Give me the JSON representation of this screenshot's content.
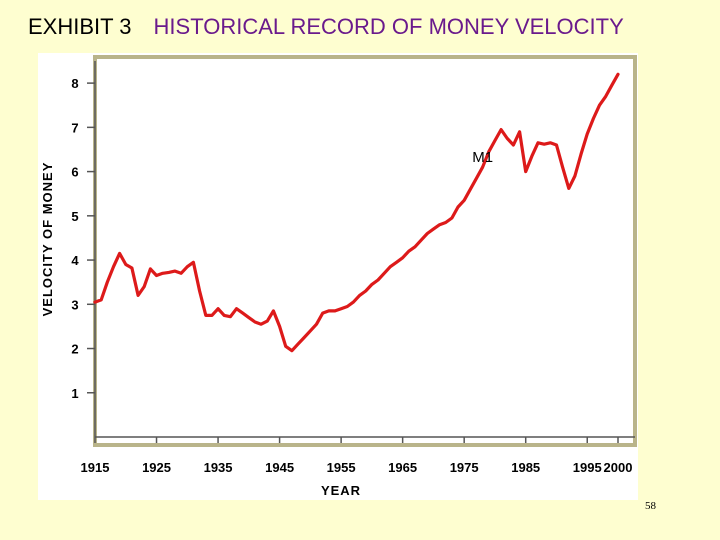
{
  "slide": {
    "exhibit_label": "EXHIBIT 3",
    "title": "HISTORICAL RECORD OF MONEY VELOCITY",
    "page_number": "58"
  },
  "colors": {
    "background": "#fefed0",
    "title": "#6a1a8c",
    "line": "#dd1a1a",
    "axis": "#555555",
    "frame": "#b9b48a"
  },
  "chart_data": {
    "type": "line",
    "title": "",
    "xlabel": "YEAR",
    "ylabel": "VELOCITY OF MONEY",
    "xlim": [
      1915,
      2000
    ],
    "ylim": [
      0,
      8.5
    ],
    "x_ticks": [
      "1915",
      "1925",
      "1935",
      "1945",
      "1955",
      "1965",
      "1975",
      "1985",
      "1995",
      "2000"
    ],
    "y_ticks": [
      "1",
      "2",
      "3",
      "4",
      "5",
      "6",
      "7",
      "8"
    ],
    "grid": false,
    "series": [
      {
        "name": "M1",
        "points": [
          [
            1915,
            3.05
          ],
          [
            1916,
            3.1
          ],
          [
            1917,
            3.5
          ],
          [
            1918,
            3.85
          ],
          [
            1919,
            4.15
          ],
          [
            1920,
            3.9
          ],
          [
            1921,
            3.82
          ],
          [
            1922,
            3.2
          ],
          [
            1923,
            3.4
          ],
          [
            1924,
            3.8
          ],
          [
            1925,
            3.65
          ],
          [
            1926,
            3.7
          ],
          [
            1927,
            3.72
          ],
          [
            1928,
            3.75
          ],
          [
            1929,
            3.7
          ],
          [
            1930,
            3.85
          ],
          [
            1931,
            3.95
          ],
          [
            1932,
            3.3
          ],
          [
            1933,
            2.75
          ],
          [
            1934,
            2.75
          ],
          [
            1935,
            2.9
          ],
          [
            1936,
            2.75
          ],
          [
            1937,
            2.72
          ],
          [
            1938,
            2.9
          ],
          [
            1939,
            2.8
          ],
          [
            1940,
            2.7
          ],
          [
            1941,
            2.6
          ],
          [
            1942,
            2.55
          ],
          [
            1943,
            2.62
          ],
          [
            1944,
            2.85
          ],
          [
            1945,
            2.5
          ],
          [
            1946,
            2.05
          ],
          [
            1947,
            1.95
          ],
          [
            1948,
            2.1
          ],
          [
            1949,
            2.25
          ],
          [
            1950,
            2.4
          ],
          [
            1951,
            2.55
          ],
          [
            1952,
            2.8
          ],
          [
            1953,
            2.85
          ],
          [
            1954,
            2.85
          ],
          [
            1955,
            2.9
          ],
          [
            1956,
            2.95
          ],
          [
            1957,
            3.05
          ],
          [
            1958,
            3.2
          ],
          [
            1959,
            3.3
          ],
          [
            1960,
            3.45
          ],
          [
            1961,
            3.55
          ],
          [
            1962,
            3.7
          ],
          [
            1963,
            3.85
          ],
          [
            1964,
            3.95
          ],
          [
            1965,
            4.05
          ],
          [
            1966,
            4.2
          ],
          [
            1967,
            4.3
          ],
          [
            1968,
            4.45
          ],
          [
            1969,
            4.6
          ],
          [
            1970,
            4.7
          ],
          [
            1971,
            4.8
          ],
          [
            1972,
            4.85
          ],
          [
            1973,
            4.95
          ],
          [
            1974,
            5.2
          ],
          [
            1975,
            5.35
          ],
          [
            1976,
            5.6
          ],
          [
            1977,
            5.85
          ],
          [
            1978,
            6.1
          ],
          [
            1979,
            6.45
          ],
          [
            1980,
            6.7
          ],
          [
            1981,
            6.95
          ],
          [
            1982,
            6.75
          ],
          [
            1983,
            6.6
          ],
          [
            1984,
            6.9
          ],
          [
            1985,
            6.0
          ],
          [
            1986,
            6.35
          ],
          [
            1987,
            6.65
          ],
          [
            1988,
            6.62
          ],
          [
            1989,
            6.65
          ],
          [
            1990,
            6.6
          ],
          [
            1991,
            6.1
          ],
          [
            1992,
            5.62
          ],
          [
            1993,
            5.9
          ],
          [
            1994,
            6.4
          ],
          [
            1995,
            6.85
          ],
          [
            1996,
            7.2
          ],
          [
            1997,
            7.5
          ],
          [
            1998,
            7.7
          ],
          [
            1999,
            7.95
          ],
          [
            2000,
            8.2
          ]
        ]
      }
    ]
  }
}
